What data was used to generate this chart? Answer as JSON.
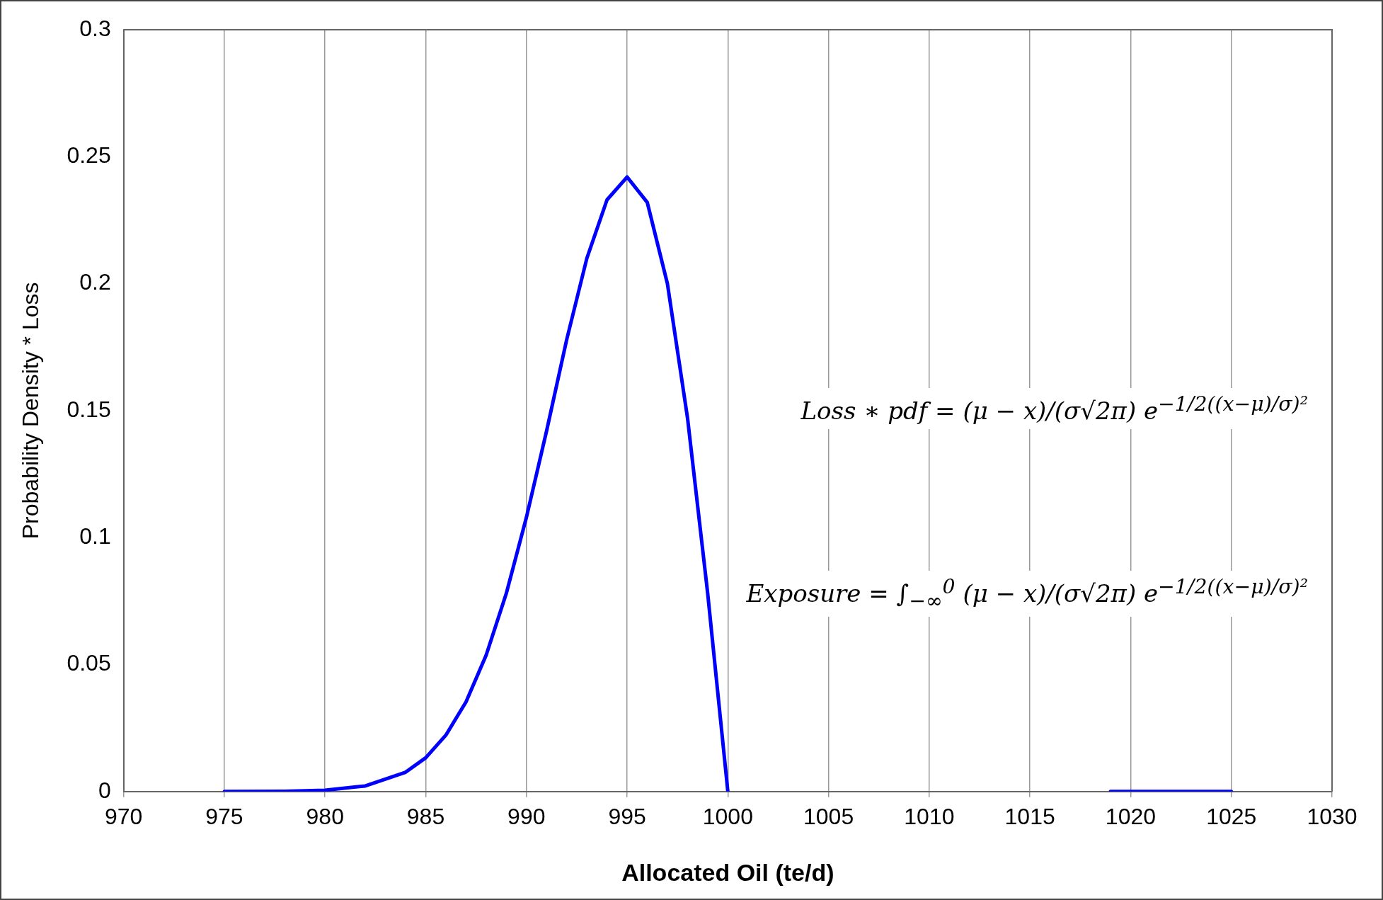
{
  "chart_data": {
    "type": "line",
    "xlabel": "Allocated Oil (te/d)",
    "ylabel": "Probability Density * Loss",
    "x": [
      975,
      978,
      980,
      982,
      984,
      985,
      986,
      987,
      988,
      989,
      990,
      991,
      992,
      993,
      994,
      995,
      996,
      997,
      998,
      999,
      1000,
      1010,
      1019,
      1025
    ],
    "series": [
      {
        "color": "#0000ff",
        "values": [
          0,
          0.0001,
          0.0005,
          0.0022,
          0.0076,
          0.0133,
          0.0222,
          0.0353,
          0.0537,
          0.078,
          0.108,
          0.142,
          0.178,
          0.21,
          0.233,
          0.242,
          0.232,
          0.2,
          0.147,
          0.078,
          0,
          null,
          0,
          0
        ]
      }
    ],
    "xlim": [
      970,
      1030
    ],
    "xticks": [
      970,
      975,
      980,
      985,
      990,
      995,
      1000,
      1005,
      1010,
      1015,
      1020,
      1025,
      1030
    ],
    "ylim": [
      0,
      0.3
    ],
    "yticks": [
      0,
      0.05,
      0.1,
      0.15,
      0.2,
      0.25,
      0.3
    ],
    "grid": "x",
    "legend": false,
    "marker": "none",
    "line_style": "solid",
    "annotations": [
      "Loss ∗ pdf = (μ − x)/(σ√2π) e$^{−1/2((x−μ)/σ)²}$",
      "Exposure = ∫$_{−∞}$$^{0}$ (μ − x)/(σ√2π) e$^{−1/2((x−μ)/σ)²}$"
    ]
  }
}
